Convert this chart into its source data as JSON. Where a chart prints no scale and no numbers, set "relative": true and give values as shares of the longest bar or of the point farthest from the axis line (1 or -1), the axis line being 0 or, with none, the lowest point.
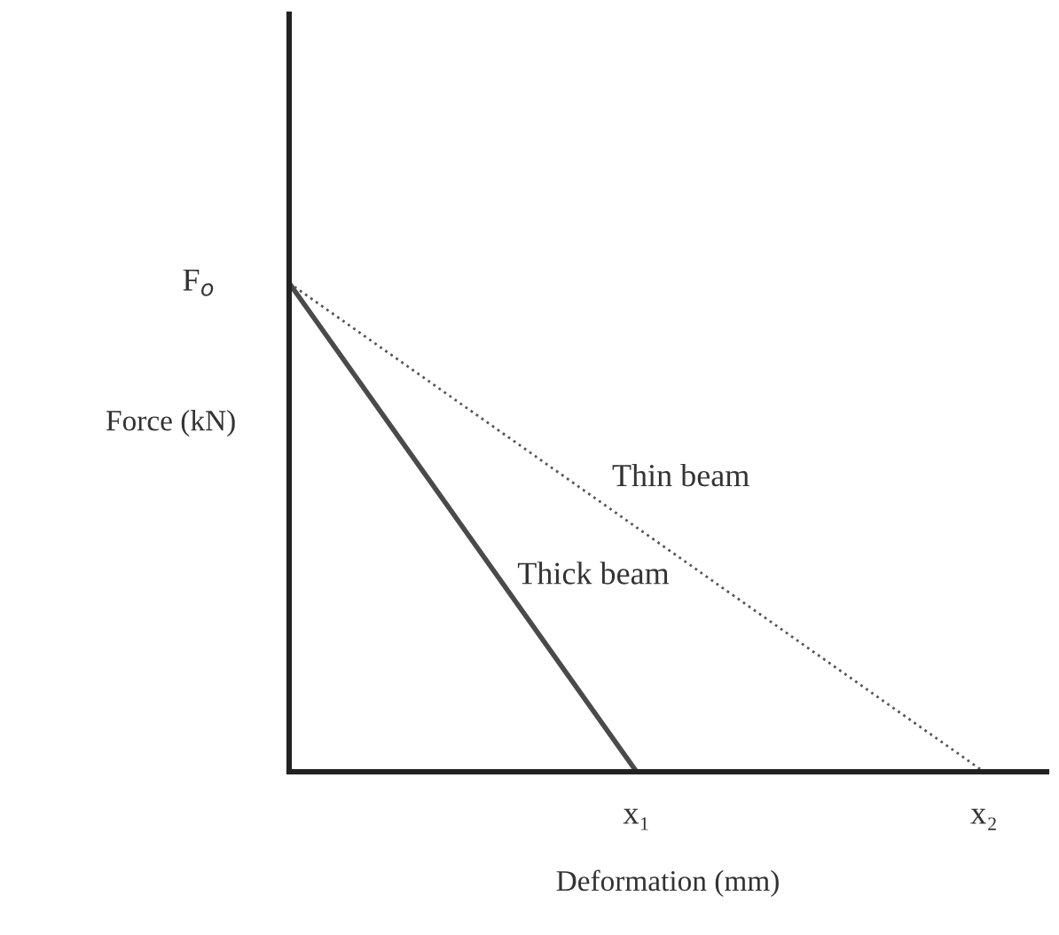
{
  "chart_data": {
    "type": "line",
    "relative": true,
    "xlabel": "Deformation (mm)",
    "ylabel": "Force (kN)",
    "categories": [
      null,
      "x₁",
      "x₂"
    ],
    "marker": "none",
    "series": [
      {
        "values": [
          1,
          0,
          null
        ],
        "color": "#4a4a4a",
        "line_style": "solid"
      },
      {
        "values": [
          1,
          0.5,
          0
        ],
        "color": "#555555",
        "line_style": "dotted"
      }
    ],
    "annotations": [
      "F$_{o}$",
      "Thin beam",
      "Thick beam"
    ]
  }
}
